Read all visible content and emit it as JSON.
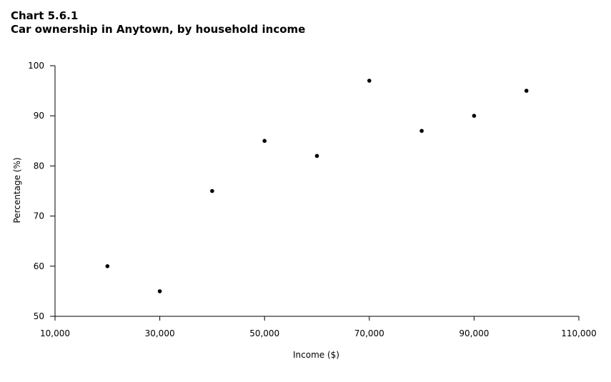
{
  "header": {
    "chart_number": "Chart 5.6.1",
    "title": "Car ownership in Anytown, by household income"
  },
  "chart_data": {
    "type": "scatter",
    "title": "Car ownership in Anytown, by household income",
    "xlabel": "Income ($)",
    "ylabel": "Percentage (%)",
    "xlim": [
      10000,
      110000
    ],
    "ylim": [
      50,
      100
    ],
    "x_ticks": [
      10000,
      30000,
      50000,
      70000,
      90000,
      110000
    ],
    "x_tick_labels": [
      "10,000",
      "30,000",
      "50,000",
      "70,000",
      "90,000",
      "110,000"
    ],
    "y_ticks": [
      50,
      60,
      70,
      80,
      90,
      100
    ],
    "y_tick_labels": [
      "50",
      "60",
      "70",
      "80",
      "90",
      "100"
    ],
    "grid": false,
    "marker_color": "#000000",
    "points": [
      {
        "x": 20000,
        "y": 60
      },
      {
        "x": 30000,
        "y": 55
      },
      {
        "x": 40000,
        "y": 75
      },
      {
        "x": 50000,
        "y": 85
      },
      {
        "x": 60000,
        "y": 82
      },
      {
        "x": 70000,
        "y": 97
      },
      {
        "x": 80000,
        "y": 87
      },
      {
        "x": 90000,
        "y": 90
      },
      {
        "x": 100000,
        "y": 95
      }
    ]
  }
}
